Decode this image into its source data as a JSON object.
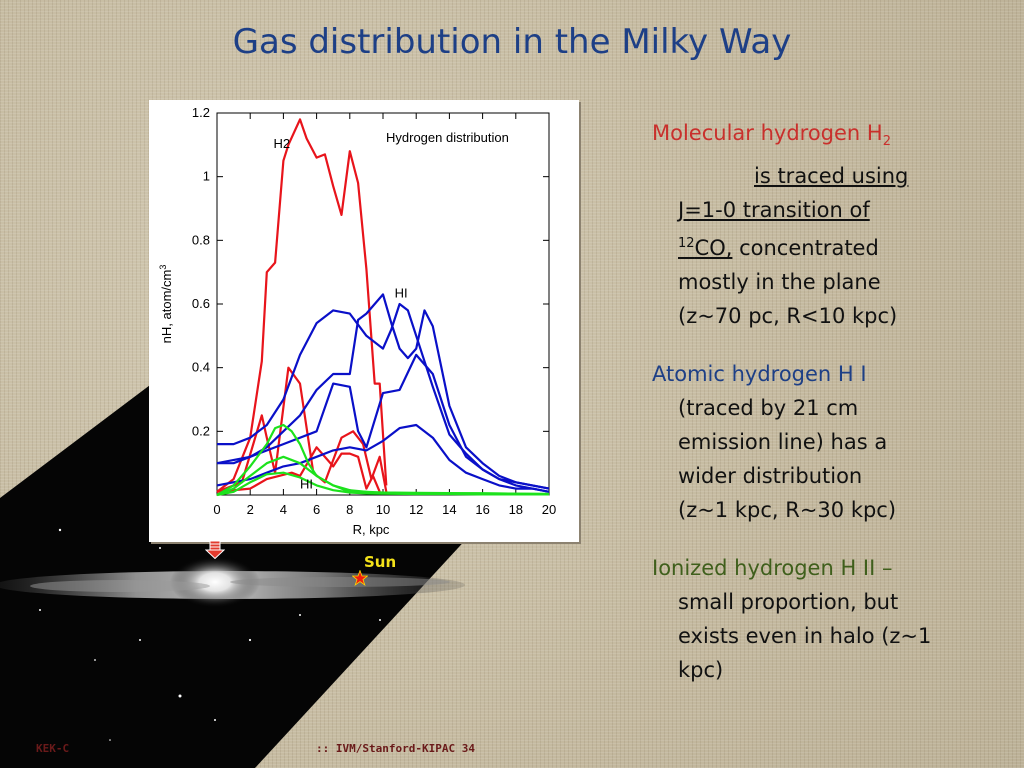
{
  "title": "Gas distribution in the Milky Way",
  "sun_label": "Sun",
  "footer": {
    "left": "KEK-C",
    "right": ":: IVM/Stanford-KIPAC  34"
  },
  "text": {
    "h2": {
      "lead": "Molecular hydrogen H",
      "lead_sub": "2",
      "traced": "is traced using",
      "line2": "J=1-0 transition of",
      "iso_sup": "12",
      "iso": "CO,",
      "after_iso": " concentrated",
      "line4": "mostly in the plane",
      "line5": "(z~70 pc, R<10 kpc)"
    },
    "hi": {
      "lead": "Atomic hydrogen H I",
      "lines": [
        "(traced by 21 cm",
        "emission line) has a",
        "wider distribution",
        "(z~1 kpc, R~30 kpc)"
      ]
    },
    "hii": {
      "lead": "Ionized hydrogen H II –",
      "lines": [
        "small proportion, but",
        "exists even in halo (z~1",
        "kpc)"
      ]
    }
  },
  "chart_data": {
    "type": "line",
    "title": "Hydrogen distribution",
    "xlabel": "R, kpc",
    "ylabel": "nH, atom/cm",
    "ylabel_sup": "3",
    "xlim": [
      0,
      20
    ],
    "ylim": [
      0,
      1.2
    ],
    "xticks": [
      0,
      2,
      4,
      6,
      8,
      10,
      12,
      14,
      16,
      18,
      20
    ],
    "yticks": [
      0.2,
      0.4,
      0.6,
      0.8,
      1,
      1.2
    ],
    "annotations": [
      {
        "text": "H2",
        "x": 3.4,
        "y": 1.09
      },
      {
        "text": "HI",
        "x": 10.7,
        "y": 0.62
      },
      {
        "text": "HI",
        "x": 5.0,
        "y": 0.02
      }
    ],
    "series": [
      {
        "group": "H2",
        "color": "#e8141b",
        "x": [
          0,
          1.0,
          2.0,
          2.7,
          3.0,
          3.5,
          4.0,
          4.3,
          5.0,
          5.4,
          6.0,
          6.5,
          7.0,
          7.5,
          8.0,
          8.5,
          9.0,
          9.5,
          9.8,
          10.2
        ],
        "y": [
          0.01,
          0.05,
          0.18,
          0.42,
          0.7,
          0.73,
          1.05,
          1.1,
          1.18,
          1.12,
          1.06,
          1.07,
          0.97,
          0.88,
          1.08,
          0.98,
          0.71,
          0.35,
          0.35,
          0.03
        ]
      },
      {
        "group": "H2",
        "color": "#e8141b",
        "x": [
          0,
          1.5,
          2.7,
          3.0,
          3.5,
          4.3,
          5.0,
          5.8,
          6.5,
          7.5,
          8.2,
          8.8,
          9.3,
          9.8,
          10.2
        ],
        "y": [
          0.01,
          0.04,
          0.25,
          0.18,
          0.07,
          0.4,
          0.35,
          0.07,
          0.04,
          0.18,
          0.2,
          0.16,
          0.05,
          0.12,
          0.01
        ]
      },
      {
        "group": "H2",
        "color": "#e8141b",
        "x": [
          0,
          2.0,
          3.0,
          4.5,
          5.0,
          6.0,
          7.0,
          7.5,
          8.0,
          8.5,
          9.0,
          9.4,
          9.8
        ],
        "y": [
          0.01,
          0.02,
          0.05,
          0.07,
          0.06,
          0.15,
          0.09,
          0.13,
          0.13,
          0.12,
          0.02,
          0.06,
          0.01
        ]
      },
      {
        "group": "HI",
        "color": "#0a10c8",
        "x": [
          0,
          1.0,
          2.0,
          3.0,
          4.0,
          5.0,
          6.0,
          7.0,
          8.0,
          9.0,
          10.0,
          10.5,
          11.0,
          11.5,
          12.0,
          12.5,
          13.0,
          14.0,
          15.0,
          16.0,
          17.0,
          18.0,
          19.0,
          20.0
        ],
        "y": [
          0.16,
          0.16,
          0.18,
          0.22,
          0.3,
          0.44,
          0.54,
          0.58,
          0.57,
          0.5,
          0.46,
          0.52,
          0.6,
          0.58,
          0.5,
          0.42,
          0.34,
          0.19,
          0.13,
          0.08,
          0.05,
          0.04,
          0.03,
          0.02
        ]
      },
      {
        "group": "HI",
        "color": "#0a10c8",
        "x": [
          0,
          1.0,
          2.0,
          3.0,
          4.0,
          5.0,
          6.0,
          7.0,
          8.0,
          8.5,
          9.0,
          9.5,
          10.0,
          10.5,
          11.0,
          11.5,
          12.0,
          12.5,
          13.0,
          14.0,
          15.0,
          16.0,
          17.0,
          18.0,
          19.0,
          20.0
        ],
        "y": [
          0.1,
          0.1,
          0.12,
          0.15,
          0.2,
          0.25,
          0.33,
          0.38,
          0.38,
          0.55,
          0.57,
          0.6,
          0.63,
          0.54,
          0.46,
          0.43,
          0.46,
          0.58,
          0.53,
          0.28,
          0.15,
          0.1,
          0.06,
          0.04,
          0.03,
          0.02
        ]
      },
      {
        "group": "HI",
        "color": "#0a10c8",
        "x": [
          0,
          2.0,
          4.0,
          6.0,
          7.0,
          8.0,
          8.5,
          9.0,
          10.0,
          11.0,
          12.0,
          13.0,
          14.0,
          15.0,
          16.0,
          17.0,
          18.0,
          19.0,
          20.0
        ],
        "y": [
          0.1,
          0.12,
          0.16,
          0.2,
          0.35,
          0.34,
          0.2,
          0.15,
          0.32,
          0.33,
          0.44,
          0.38,
          0.22,
          0.12,
          0.08,
          0.05,
          0.03,
          0.02,
          0.01
        ]
      },
      {
        "group": "HI",
        "color": "#0a10c8",
        "x": [
          0,
          2.0,
          3.0,
          4.0,
          5.0,
          6.0,
          7.0,
          8.0,
          9.0,
          10.0,
          11.0,
          12.0,
          13.0,
          14.0,
          15.0,
          16.0,
          17.0,
          18.0,
          19.0,
          20.0
        ],
        "y": [
          0.03,
          0.05,
          0.07,
          0.09,
          0.1,
          0.12,
          0.14,
          0.15,
          0.14,
          0.17,
          0.21,
          0.22,
          0.18,
          0.11,
          0.07,
          0.05,
          0.03,
          0.02,
          0.02,
          0.01
        ]
      },
      {
        "group": "HII",
        "color": "#1ce21c",
        "x": [
          0,
          1.0,
          2.0,
          3.0,
          3.5,
          4.0,
          4.5,
          5.0,
          5.5,
          6.0,
          7.0,
          8.0,
          9.0,
          10.0,
          12.0,
          14.0,
          16.0,
          18.0,
          20.0
        ],
        "y": [
          0.0,
          0.03,
          0.09,
          0.16,
          0.21,
          0.22,
          0.2,
          0.16,
          0.1,
          0.06,
          0.03,
          0.01,
          0.01,
          0.005,
          0.005,
          0.005,
          0.005,
          0.004,
          0.003
        ]
      },
      {
        "group": "HII",
        "color": "#1ce21c",
        "x": [
          0,
          1.0,
          2.0,
          3.0,
          4.0,
          5.0,
          6.0,
          7.0,
          8.0,
          9.0,
          10.0,
          12.0,
          14.0,
          16.0,
          18.0,
          20.0
        ],
        "y": [
          0.0,
          0.02,
          0.06,
          0.1,
          0.12,
          0.1,
          0.06,
          0.03,
          0.015,
          0.01,
          0.008,
          0.007,
          0.006,
          0.005,
          0.004,
          0.003
        ]
      },
      {
        "group": "HII",
        "color": "#1ce21c",
        "x": [
          0,
          1.0,
          2.0,
          3.0,
          4.0,
          5.0,
          6.0,
          7.0,
          8.0,
          9.0,
          10.0,
          12.0,
          14.0,
          16.0,
          18.0,
          20.0
        ],
        "y": [
          0.0,
          0.01,
          0.04,
          0.065,
          0.07,
          0.055,
          0.03,
          0.015,
          0.008,
          0.005,
          0.004,
          0.003,
          0.003,
          0.002,
          0.002,
          0.002
        ]
      }
    ]
  }
}
